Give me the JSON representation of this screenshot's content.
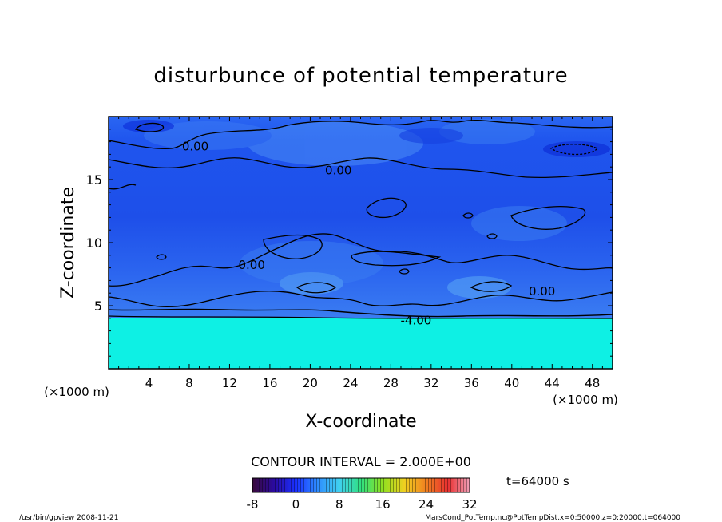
{
  "chart_data": {
    "type": "heatmap",
    "title": "disturbunce of potential temperature",
    "xlabel": "X-coordinate",
    "ylabel": "Z-coordinate",
    "x_unit": "(×1000 m)",
    "y_unit": "(×1000 m)",
    "xlim": [
      0,
      50
    ],
    "ylim": [
      0,
      20
    ],
    "x_ticks": [
      4,
      8,
      12,
      16,
      20,
      24,
      28,
      32,
      36,
      40,
      44,
      48
    ],
    "y_ticks": [
      5,
      10,
      15
    ],
    "contour_labels": [
      {
        "text": "0.00",
        "x": 8.6,
        "z": 17.7
      },
      {
        "text": "0.00",
        "x": 22.8,
        "z": 15.8
      },
      {
        "text": "0.00",
        "x": 14.2,
        "z": 8.3
      },
      {
        "text": "0.00",
        "x": 43.0,
        "z": 6.2
      },
      {
        "text": "-4.00",
        "x": 30.5,
        "z": 3.9
      }
    ],
    "contour_interval": "CONTOUR INTERVAL = 2.000E+00",
    "colorbar": {
      "ticks": [
        "-8",
        "0",
        "8",
        "16",
        "24",
        "32"
      ],
      "min": -8,
      "max": 32
    },
    "time_label": "t=64000 s",
    "footer_left": "/usr/bin/gpview  2008-11-21",
    "footer_right": "MarsCond_PotTemp.nc@PotTempDist,x=0:50000,z=0:20000,t=064000"
  }
}
